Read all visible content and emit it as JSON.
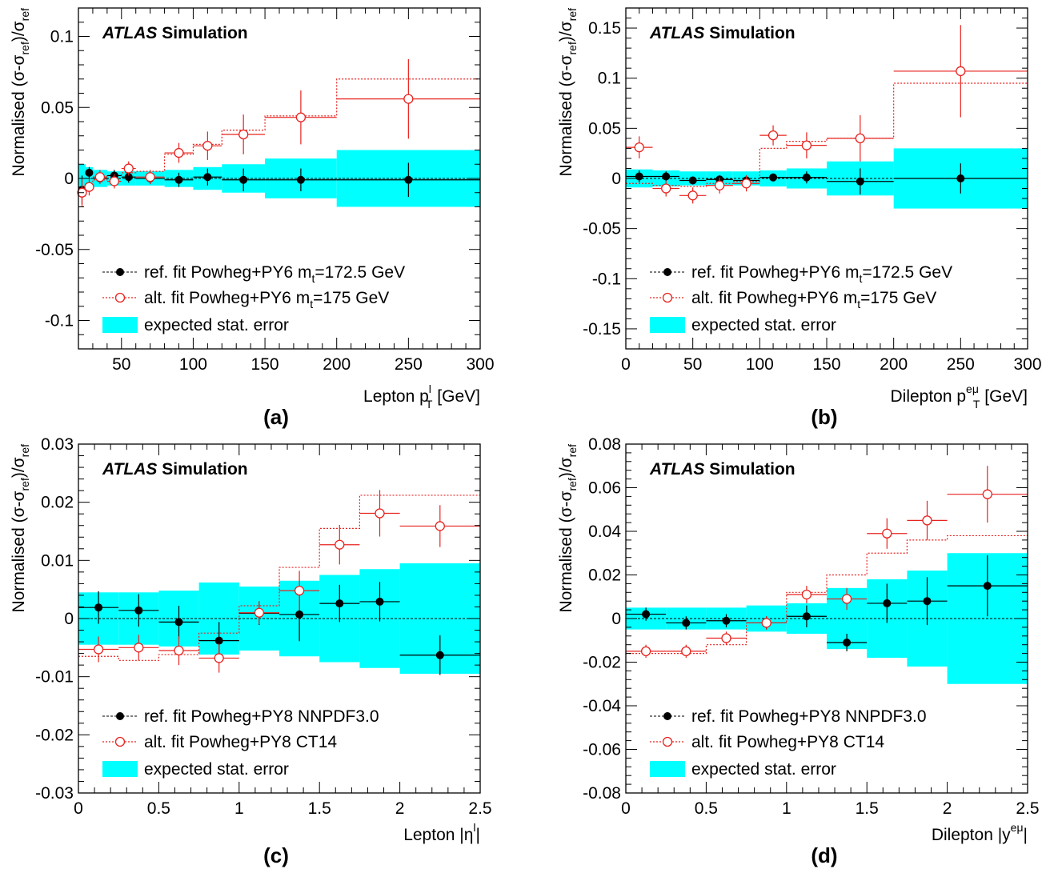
{
  "atlas": {
    "bold": "ATLAS",
    "label": "Simulation"
  },
  "chart_data": [
    {
      "type": "scatter",
      "panel_label": "(a)",
      "xlabel": {
        "pre": "Lepton p",
        "sup": "l",
        "sub": "T",
        "post": " [GeV]"
      },
      "ylabel": {
        "pre": "Normalised (σ-σ",
        "sub1": "ref",
        "mid": ")/σ",
        "sub2": "ref"
      },
      "xlim": [
        20,
        300
      ],
      "ylim": [
        -0.12,
        0.12
      ],
      "xticks": [
        50,
        100,
        150,
        200,
        250,
        300
      ],
      "xtick_labels": [
        "50",
        "100",
        "150",
        "200",
        "250",
        "300"
      ],
      "yticks": [
        -0.1,
        -0.05,
        0,
        0.05,
        0.1
      ],
      "ytick_labels": [
        "-0.1",
        "-0.05",
        "0",
        "0.05",
        "0.1"
      ],
      "bin_edges": [
        20,
        25,
        30,
        40,
        50,
        60,
        80,
        100,
        120,
        150,
        200,
        300
      ],
      "stat_error": [
        0.01,
        0.008,
        0.006,
        0.005,
        0.005,
        0.005,
        0.006,
        0.008,
        0.01,
        0.014,
        0.02
      ],
      "series": [
        {
          "name": "ref. fit Powheg+PY6 m_t=172.5 GeV",
          "values": [
            -0.008,
            0.004,
            0.0,
            0.002,
            0.001,
            0.0,
            -0.001,
            0.001,
            -0.001,
            -0.001,
            -0.001
          ],
          "yerr": [
            0.01,
            0.004,
            0.003,
            0.004,
            0.004,
            0.004,
            0.005,
            0.006,
            0.008,
            0.008,
            0.012
          ]
        },
        {
          "name": "alt. fit Powheg+PY6 m_t=175 GeV",
          "values": [
            -0.01,
            -0.006,
            0.001,
            -0.002,
            0.007,
            0.001,
            0.018,
            0.023,
            0.031,
            0.043,
            0.056
          ],
          "yerr": [
            0.01,
            0.006,
            0.005,
            0.005,
            0.005,
            0.005,
            0.007,
            0.01,
            0.014,
            0.019,
            0.028
          ]
        }
      ],
      "alt_expected": [
        -0.006,
        -0.004,
        -0.001,
        0.002,
        0.004,
        0.005,
        0.017,
        0.024,
        0.034,
        0.044,
        0.07
      ],
      "legend": {
        "ref": {
          "pre": "ref. fit Powheg+PY6 m",
          "sub": "t",
          "post": "=172.5 GeV"
        },
        "alt": {
          "pre": "alt. fit Powheg+PY6 m",
          "sub": "t",
          "post": "=175 GeV"
        },
        "band": "expected stat. error"
      }
    },
    {
      "type": "scatter",
      "panel_label": "(b)",
      "xlabel": {
        "pre": "Dilepton p",
        "sup": "eμ",
        "sub": "T",
        "post": " [GeV]"
      },
      "ylabel": {
        "pre": "Normalised (σ-σ",
        "sub1": "ref",
        "mid": ")/σ",
        "sub2": "ref"
      },
      "xlim": [
        0,
        300
      ],
      "ylim": [
        -0.17,
        0.17
      ],
      "xticks": [
        0,
        50,
        100,
        150,
        200,
        250,
        300
      ],
      "xtick_labels": [
        "0",
        "50",
        "100",
        "150",
        "200",
        "250",
        "300"
      ],
      "yticks": [
        -0.15,
        -0.1,
        -0.05,
        0,
        0.05,
        0.1,
        0.15
      ],
      "ytick_labels": [
        "-0.15",
        "-0.1",
        "-0.05",
        "0",
        "0.05",
        "0.1",
        "0.15"
      ],
      "bin_edges": [
        0,
        20,
        40,
        60,
        80,
        100,
        120,
        150,
        200,
        300
      ],
      "stat_error": [
        0.009,
        0.008,
        0.007,
        0.007,
        0.007,
        0.008,
        0.01,
        0.017,
        0.03
      ],
      "series": [
        {
          "name": "ref. fit Powheg+PY6 m_t=172.5 GeV",
          "values": [
            0.002,
            0.002,
            -0.002,
            -0.001,
            -0.002,
            0.001,
            0.001,
            -0.003,
            0.0
          ],
          "yerr": [
            0.006,
            0.005,
            0.004,
            0.004,
            0.005,
            0.004,
            0.006,
            0.013,
            0.015
          ]
        },
        {
          "name": "alt. fit Powheg+PY6 m_t=175 GeV",
          "values": [
            0.031,
            -0.01,
            -0.017,
            -0.007,
            -0.005,
            0.043,
            0.033,
            0.04,
            0.107
          ],
          "yerr": [
            0.011,
            0.008,
            0.008,
            0.008,
            0.008,
            0.01,
            0.013,
            0.023,
            0.046
          ]
        }
      ],
      "alt_expected": [
        -0.005,
        -0.007,
        -0.008,
        -0.005,
        -0.003,
        0.03,
        0.037,
        0.04,
        0.095
      ],
      "legend": {
        "ref": {
          "pre": "ref. fit Powheg+PY6 m",
          "sub": "t",
          "post": "=172.5 GeV"
        },
        "alt": {
          "pre": "alt. fit Powheg+PY6 m",
          "sub": "t",
          "post": "=175 GeV"
        },
        "band": "expected stat. error"
      }
    },
    {
      "type": "scatter",
      "panel_label": "(c)",
      "xlabel": {
        "pre": "Lepton |η",
        "sup": "l",
        "sub": "",
        "post": "|"
      },
      "ylabel": {
        "pre": "Normalised (σ-σ",
        "sub1": "ref",
        "mid": ")/σ",
        "sub2": "ref"
      },
      "xlim": [
        0,
        2.5
      ],
      "ylim": [
        -0.03,
        0.03
      ],
      "xticks": [
        0,
        0.5,
        1,
        1.5,
        2,
        2.5
      ],
      "xtick_labels": [
        "0",
        "0.5",
        "1",
        "1.5",
        "2",
        "2.5"
      ],
      "yticks": [
        -0.03,
        -0.02,
        -0.01,
        0,
        0.01,
        0.02,
        0.03
      ],
      "ytick_labels": [
        "-0.03",
        "-0.02",
        "-0.01",
        "0",
        "0.01",
        "0.02",
        "0.03"
      ],
      "bin_edges": [
        0,
        0.25,
        0.5,
        0.75,
        1.0,
        1.25,
        1.5,
        1.75,
        2.0,
        2.5
      ],
      "stat_error": [
        0.0045,
        0.0045,
        0.0048,
        0.0062,
        0.0055,
        0.0065,
        0.0075,
        0.0085,
        0.0095
      ],
      "series": [
        {
          "name": "ref. fit Powheg+PY8 NNPDF3.0",
          "values": [
            0.0019,
            0.0014,
            -0.0006,
            -0.0038,
            0.0009,
            0.0007,
            0.0026,
            0.0029,
            -0.0063
          ],
          "yerr": [
            0.0028,
            0.0028,
            0.0028,
            0.0032,
            0.002,
            0.0046,
            0.0032,
            0.0034,
            0.0034
          ]
        },
        {
          "name": "alt. fit Powheg+PY8 CT14",
          "values": [
            -0.0053,
            -0.005,
            -0.0055,
            -0.0068,
            0.001,
            0.0048,
            0.0127,
            0.0181,
            0.0159
          ],
          "yerr": [
            0.0022,
            0.0022,
            0.0025,
            0.0025,
            0.002,
            0.0034,
            0.0034,
            0.004,
            0.0036
          ]
        }
      ],
      "alt_expected": [
        -0.0065,
        -0.0072,
        -0.0062,
        -0.0025,
        0.0022,
        0.0088,
        0.0155,
        0.0212,
        0.0212
      ],
      "legend": {
        "ref": {
          "pre": "ref. fit Powheg+PY8 NNPDF3.0",
          "sub": "",
          "post": ""
        },
        "alt": {
          "pre": "alt. fit Powheg+PY8 CT14",
          "sub": "",
          "post": ""
        },
        "band": "expected stat. error"
      }
    },
    {
      "type": "scatter",
      "panel_label": "(d)",
      "xlabel": {
        "pre": "Dilepton |y",
        "sup": "eμ",
        "sub": "",
        "post": "|"
      },
      "ylabel": {
        "pre": "Normalised (σ-σ",
        "sub1": "ref",
        "mid": ")/σ",
        "sub2": "ref"
      },
      "xlim": [
        0,
        2.5
      ],
      "ylim": [
        -0.08,
        0.08
      ],
      "xticks": [
        0,
        0.5,
        1,
        1.5,
        2,
        2.5
      ],
      "xtick_labels": [
        "0",
        "0.5",
        "1",
        "1.5",
        "2",
        "2.5"
      ],
      "yticks": [
        -0.08,
        -0.06,
        -0.04,
        -0.02,
        0,
        0.02,
        0.04,
        0.06,
        0.08
      ],
      "ytick_labels": [
        "-0.08",
        "-0.06",
        "-0.04",
        "-0.02",
        "0",
        "0.02",
        "0.04",
        "0.06",
        "0.08"
      ],
      "bin_edges": [
        0,
        0.25,
        0.5,
        0.75,
        1.0,
        1.25,
        1.5,
        1.75,
        2.0,
        2.5
      ],
      "stat_error": [
        0.005,
        0.005,
        0.005,
        0.006,
        0.007,
        0.014,
        0.018,
        0.022,
        0.03
      ],
      "series": [
        {
          "name": "ref. fit Powheg+PY8 NNPDF3.0",
          "values": [
            0.002,
            -0.002,
            -0.001,
            -0.002,
            0.001,
            -0.011,
            0.007,
            0.008,
            0.015
          ],
          "yerr": [
            0.003,
            0.003,
            0.003,
            0.003,
            0.005,
            0.004,
            0.009,
            0.011,
            0.014
          ]
        },
        {
          "name": "alt. fit Powheg+PY8 CT14",
          "values": [
            -0.015,
            -0.015,
            -0.009,
            -0.002,
            0.011,
            0.009,
            0.039,
            0.045,
            0.057
          ],
          "yerr": [
            0.003,
            0.003,
            0.003,
            0.003,
            0.004,
            0.005,
            0.007,
            0.009,
            0.013
          ]
        }
      ],
      "alt_expected": [
        -0.016,
        -0.016,
        -0.012,
        -0.002,
        0.012,
        0.02,
        0.03,
        0.036,
        0.038
      ],
      "legend": {
        "ref": {
          "pre": "ref. fit Powheg+PY8 NNPDF3.0",
          "sub": "",
          "post": ""
        },
        "alt": {
          "pre": "alt. fit Powheg+PY8 CT14",
          "sub": "",
          "post": ""
        },
        "band": "expected stat. error"
      }
    }
  ]
}
